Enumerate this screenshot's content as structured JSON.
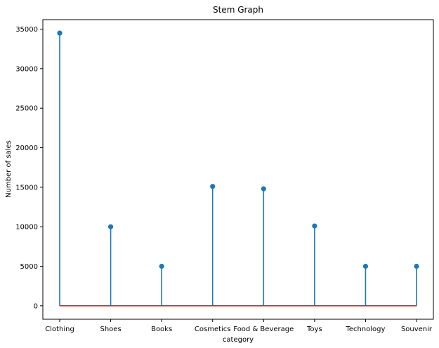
{
  "chart_data": {
    "type": "stem",
    "title": "Stem Graph",
    "xlabel": "category",
    "ylabel": "Number of sales",
    "categories": [
      "Clothing",
      "Shoes",
      "Books",
      "Cosmetics",
      "Food & Beverage",
      "Toys",
      "Technology",
      "Souvenir"
    ],
    "values": [
      34500,
      10000,
      5000,
      15100,
      14800,
      10100,
      5000,
      5000
    ],
    "ylim": [
      -1700,
      36200
    ],
    "yticks": [
      0,
      5000,
      10000,
      15000,
      20000,
      25000,
      30000,
      35000
    ],
    "grid": false,
    "colors": {
      "stem": "#1f77b4",
      "marker": "#1f77b4",
      "baseline": "#d62728",
      "axes": "#000000"
    }
  }
}
